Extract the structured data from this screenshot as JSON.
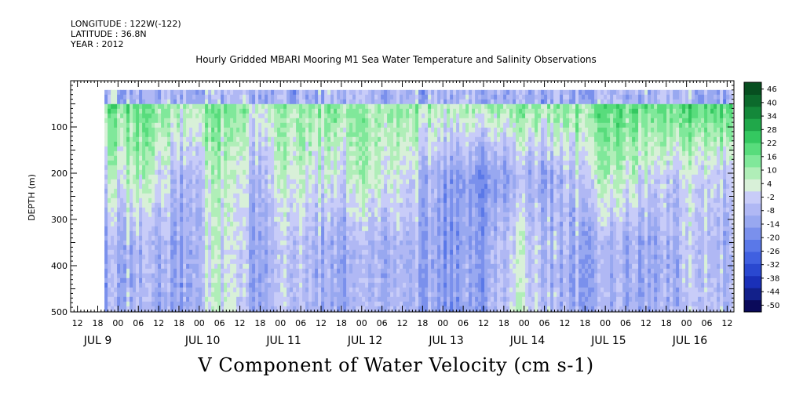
{
  "header": {
    "longitude": "LONGITUDE : 122W(-122)",
    "latitude": "LATITUDE : 36.8N",
    "year": "YEAR : 2012"
  },
  "chart_data": {
    "type": "heatmap",
    "title": "Hourly Gridded MBARI Mooring M1 Sea Water Temperature and Salinity Observations",
    "bottom_title": "V Component of Water Velocity (cm s-1)",
    "xlabel": "",
    "ylabel": "DEPTH (m)",
    "y_reversed": true,
    "ylim": [
      500,
      0
    ],
    "y_ticks": [
      100,
      200,
      300,
      400,
      500
    ],
    "x_hour_labels": [
      "12",
      "18",
      "00",
      "06",
      "12",
      "18",
      "00",
      "06",
      "12",
      "18",
      "00",
      "06",
      "12",
      "18",
      "00",
      "06",
      "12",
      "18",
      "00",
      "06",
      "12",
      "18",
      "00",
      "06",
      "12",
      "18",
      "00",
      "06",
      "12",
      "18",
      "00",
      "06",
      "12"
    ],
    "x_day_labels": [
      "JUL 9",
      "JUL 10",
      "JUL 11",
      "JUL 12",
      "JUL 13",
      "JUL 14",
      "JUL 15",
      "JUL 16"
    ],
    "xlim_hours": [
      "2012-07-08T10:00",
      "2012-07-16T14:00"
    ],
    "data_start": "2012-07-08T20:00",
    "depth_range": [
      20,
      490
    ],
    "colorbar": {
      "levels": [
        -50,
        -44,
        -38,
        -32,
        -26,
        -20,
        -14,
        -8,
        -2,
        4,
        10,
        16,
        22,
        28,
        34,
        40,
        46
      ],
      "min": -50,
      "max": 52,
      "colors_low": [
        "#0a0a5a",
        "#12208a",
        "#1a30b8",
        "#2a48d0",
        "#4060e0",
        "#5a78e8",
        "#7a90ec",
        "#98a8f0",
        "#b0b8f4",
        "#c8ccf8"
      ],
      "colors_high": [
        "#d8f0d8",
        "#b0eeb8",
        "#80e89a",
        "#58dc7c",
        "#34c860",
        "#20a84a",
        "#14883a",
        "#0c6a2c",
        "#074f20"
      ]
    },
    "profile": {
      "note_columns": "time fraction across plot, depth-band value tendency",
      "segments": [
        {
          "t": 0.0,
          "upper": 18,
          "mid": 4,
          "lower": -8
        },
        {
          "t": 0.06,
          "upper": 20,
          "mid": 12,
          "lower": -4
        },
        {
          "t": 0.12,
          "upper": 10,
          "mid": -6,
          "lower": -10
        },
        {
          "t": 0.18,
          "upper": 18,
          "mid": 10,
          "lower": 6
        },
        {
          "t": 0.24,
          "upper": 8,
          "mid": -4,
          "lower": -8
        },
        {
          "t": 0.3,
          "upper": 16,
          "mid": 12,
          "lower": 2
        },
        {
          "t": 0.36,
          "upper": 14,
          "mid": 2,
          "lower": -10
        },
        {
          "t": 0.42,
          "upper": 12,
          "mid": 10,
          "lower": -6
        },
        {
          "t": 0.48,
          "upper": 16,
          "mid": 4,
          "lower": -4
        },
        {
          "t": 0.54,
          "upper": 10,
          "mid": -10,
          "lower": -12
        },
        {
          "t": 0.6,
          "upper": 12,
          "mid": -14,
          "lower": -10
        },
        {
          "t": 0.66,
          "upper": 18,
          "mid": -6,
          "lower": 6
        },
        {
          "t": 0.72,
          "upper": 14,
          "mid": -8,
          "lower": -6
        },
        {
          "t": 0.78,
          "upper": 20,
          "mid": 8,
          "lower": -8
        },
        {
          "t": 0.84,
          "upper": 22,
          "mid": 8,
          "lower": -6
        },
        {
          "t": 0.9,
          "upper": 18,
          "mid": -4,
          "lower": -10
        },
        {
          "t": 0.95,
          "upper": 26,
          "mid": 6,
          "lower": 2
        },
        {
          "t": 1.0,
          "upper": 24,
          "mid": -2,
          "lower": -6
        }
      ]
    }
  }
}
